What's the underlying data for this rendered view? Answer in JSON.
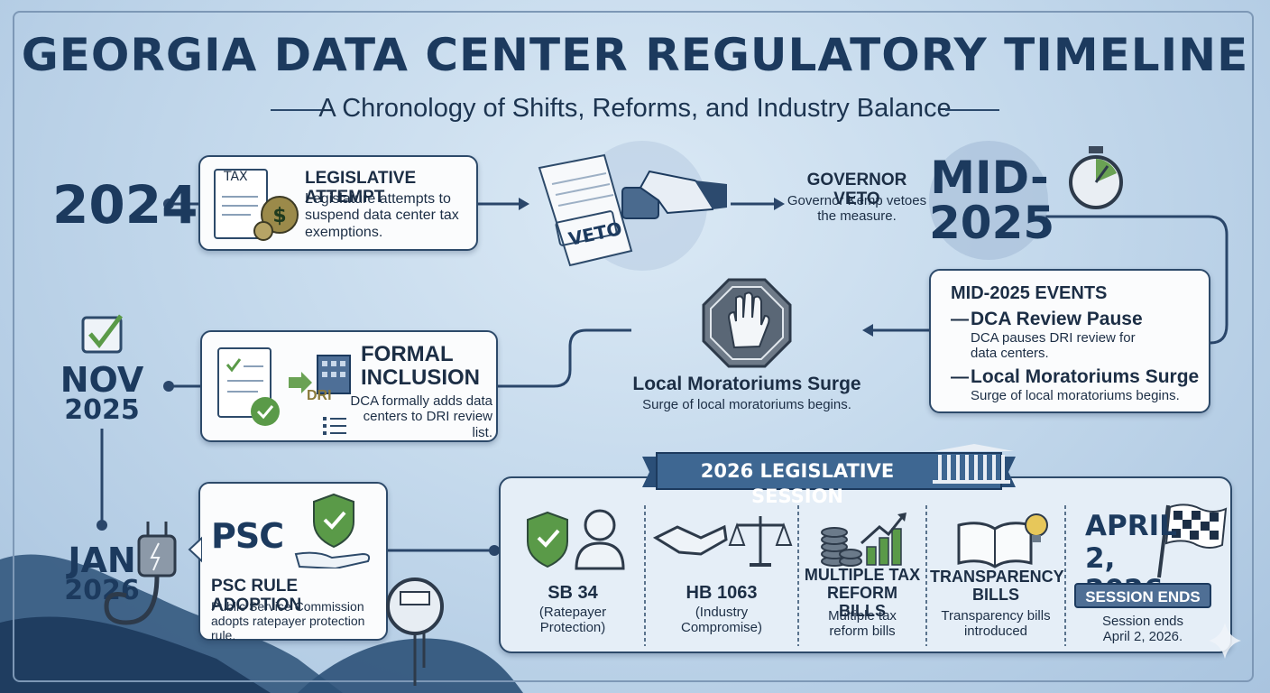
{
  "header": {
    "title": "GEORGIA DATA CENTER REGULATORY TIMELINE",
    "subtitle": "A Chronology of Shifts, Reforms, and Industry Balance"
  },
  "dates": {
    "d2024": "2024",
    "mid": "MID-",
    "mid_year": "2025",
    "nov": "NOV",
    "nov_year": "2025",
    "jan": "JAN",
    "jan_year": "2026"
  },
  "legislative_attempt": {
    "tax_label": "TAX",
    "title": "LEGISLATIVE ATTEMPT",
    "text": "Legislature attempts to suspend data center tax exemptions."
  },
  "veto": {
    "stamp": "VETO",
    "title": "GOVERNOR VETO",
    "text": "Governor Kemp vetoes the measure."
  },
  "mid2025_events": {
    "title": "MID-2025 EVENTS",
    "items": [
      {
        "dash": "—",
        "title": "DCA Review Pause",
        "text": "DCA pauses DRI review for data centers."
      },
      {
        "dash": "—",
        "title": "Local Moratoriums Surge",
        "text": "Surge of local moratoriums begins."
      }
    ]
  },
  "moratoriums": {
    "title": "Local Moratoriums Surge",
    "text": "Surge of local moratoriums begins."
  },
  "formal_inclusion": {
    "title_line1": "FORMAL",
    "title_line2": "INCLUSION",
    "dri_label": "DRI",
    "text": "DCA formally adds data centers to DRI review list."
  },
  "psc": {
    "logo": "PSC",
    "title": "PSC RULE ADOPTION",
    "text": "Public Service Commission adopts ratepayer protection rule."
  },
  "session": {
    "banner": "2026 LEGISLATIVE SESSION",
    "columns": [
      {
        "title": "SB 34",
        "text": "(Ratepayer Protection)"
      },
      {
        "title": "HB 1063",
        "text": "(Industry Compromise)"
      },
      {
        "title": "MULTIPLE TAX REFORM BILLS",
        "text": "Multiple tax reform bills"
      },
      {
        "title": "TRANSPARENCY BILLS",
        "text": "Transparency bills introduced"
      }
    ],
    "end_date": "APRIL 2, 2026",
    "end_badge": "SESSION ENDS",
    "end_text": "Session ends April 2, 2026."
  },
  "colors": {
    "navy": "#1c3a5e",
    "green": "#4f9a4a",
    "line": "#2a466a"
  }
}
